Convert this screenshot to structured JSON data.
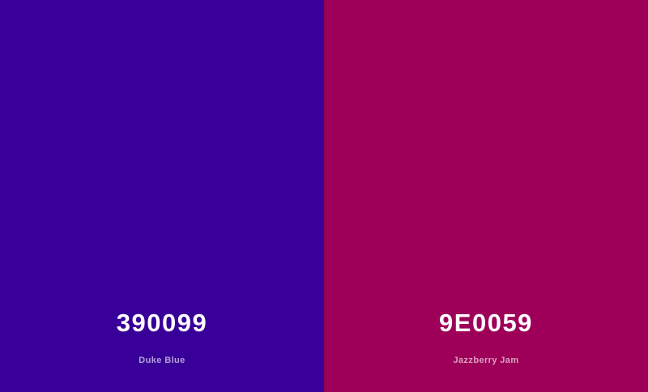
{
  "palette": {
    "swatches": [
      {
        "hex": "390099",
        "name": "Duke Blue",
        "color": "#390099"
      },
      {
        "hex": "9E0059",
        "name": "Jazzberry Jam",
        "color": "#9E0059"
      }
    ]
  }
}
